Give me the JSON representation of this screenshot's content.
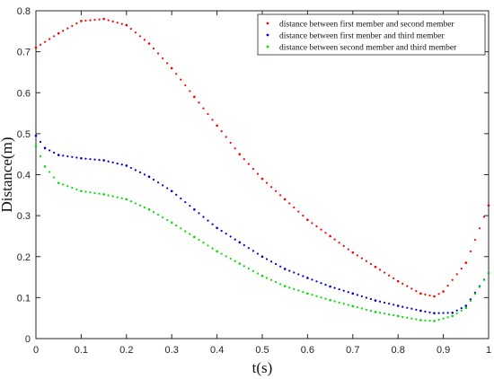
{
  "chart_data": {
    "type": "scatter",
    "xlabel": "t(s)",
    "ylabel": "Distance(m)",
    "xlim": [
      0,
      1
    ],
    "ylim": [
      0,
      0.8
    ],
    "xticks": [
      0,
      0.1,
      0.2,
      0.3,
      0.4,
      0.5,
      0.6,
      0.7,
      0.8,
      0.9,
      1
    ],
    "xtick_labels": [
      "0",
      "0.1",
      "0.2",
      "0.3",
      "0.4",
      "0.5",
      "0.6",
      "0.7",
      "0.8",
      "0.9",
      "1"
    ],
    "yticks": [
      0,
      0.1,
      0.2,
      0.3,
      0.4,
      0.5,
      0.6,
      0.7,
      0.8
    ],
    "ytick_labels": [
      "0",
      "0.1",
      "0.2",
      "0.3",
      "0.4",
      "0.5",
      "0.6",
      "0.7",
      "0.8"
    ],
    "grid": false,
    "legend_position": "top-right",
    "series": [
      {
        "name": "distance between first member and second member",
        "color": "#ff0000",
        "x": [
          0,
          0.05,
          0.1,
          0.15,
          0.2,
          0.25,
          0.3,
          0.35,
          0.4,
          0.45,
          0.5,
          0.55,
          0.6,
          0.65,
          0.7,
          0.75,
          0.8,
          0.85,
          0.88,
          0.9,
          0.95,
          1.0
        ],
        "y": [
          0.71,
          0.745,
          0.775,
          0.78,
          0.765,
          0.72,
          0.66,
          0.59,
          0.52,
          0.45,
          0.39,
          0.34,
          0.29,
          0.25,
          0.21,
          0.175,
          0.14,
          0.11,
          0.103,
          0.115,
          0.185,
          0.325
        ]
      },
      {
        "name": "distance between first menber and third member",
        "color": "#0000cc",
        "x": [
          0,
          0.02,
          0.05,
          0.1,
          0.15,
          0.2,
          0.25,
          0.3,
          0.35,
          0.4,
          0.45,
          0.5,
          0.55,
          0.6,
          0.65,
          0.7,
          0.75,
          0.8,
          0.85,
          0.88,
          0.92,
          0.95,
          1.0
        ],
        "y": [
          0.495,
          0.465,
          0.448,
          0.44,
          0.435,
          0.422,
          0.395,
          0.36,
          0.315,
          0.27,
          0.235,
          0.2,
          0.17,
          0.148,
          0.127,
          0.11,
          0.093,
          0.08,
          0.068,
          0.062,
          0.063,
          0.08,
          0.16
        ]
      },
      {
        "name": "distance between second member and third member",
        "color": "#00dd00",
        "x": [
          0,
          0.02,
          0.05,
          0.1,
          0.15,
          0.2,
          0.25,
          0.3,
          0.35,
          0.4,
          0.45,
          0.5,
          0.55,
          0.6,
          0.65,
          0.7,
          0.75,
          0.8,
          0.85,
          0.88,
          0.92,
          0.95,
          1.0
        ],
        "y": [
          0.47,
          0.42,
          0.38,
          0.36,
          0.352,
          0.34,
          0.315,
          0.283,
          0.248,
          0.213,
          0.183,
          0.153,
          0.128,
          0.11,
          0.094,
          0.079,
          0.065,
          0.055,
          0.045,
          0.043,
          0.055,
          0.075,
          0.16
        ]
      }
    ]
  }
}
